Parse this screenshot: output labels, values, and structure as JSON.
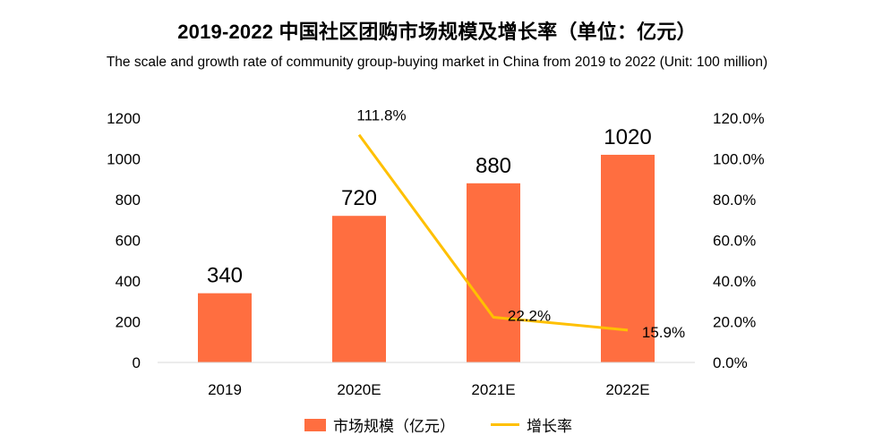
{
  "title": "2019-2022 中国社区团购市场规模及增长率（单位：亿元）",
  "subtitle": "The scale and growth rate of community group-buying market in China from 2019 to 2022 (Unit: 100 million)",
  "colors": {
    "bar": "#FF6E40",
    "line": "#FFC000",
    "axis": "#D9D9D9"
  },
  "chart_data": {
    "type": "bar",
    "title": "2019-2022 中国社区团购市场规模及增长率（单位：亿元）",
    "subtitle": "The scale and growth rate of community group-buying market in China from 2019 to 2022 (Unit: 100 million)",
    "categories": [
      "2019",
      "2020E",
      "2021E",
      "2022E"
    ],
    "series": [
      {
        "name": "市场规模（亿元）",
        "type": "bar",
        "axis": "left",
        "values": [
          340,
          720,
          880,
          1020
        ],
        "labels": [
          "340",
          "720",
          "880",
          "1020"
        ]
      },
      {
        "name": "增长率",
        "type": "line",
        "axis": "right",
        "values": [
          null,
          111.8,
          22.2,
          15.9
        ],
        "labels": [
          "",
          "111.8%",
          "22.2%",
          "15.9%"
        ]
      }
    ],
    "y_left": {
      "lim": [
        0,
        1200
      ],
      "ticks": [
        "0",
        "200",
        "400",
        "600",
        "800",
        "1000",
        "1200"
      ]
    },
    "y_right": {
      "lim": [
        0,
        120
      ],
      "ticks": [
        "0.0%",
        "20.0%",
        "40.0%",
        "60.0%",
        "80.0%",
        "100.0%",
        "120.0%"
      ]
    },
    "grid": false,
    "legend_position": "bottom"
  }
}
